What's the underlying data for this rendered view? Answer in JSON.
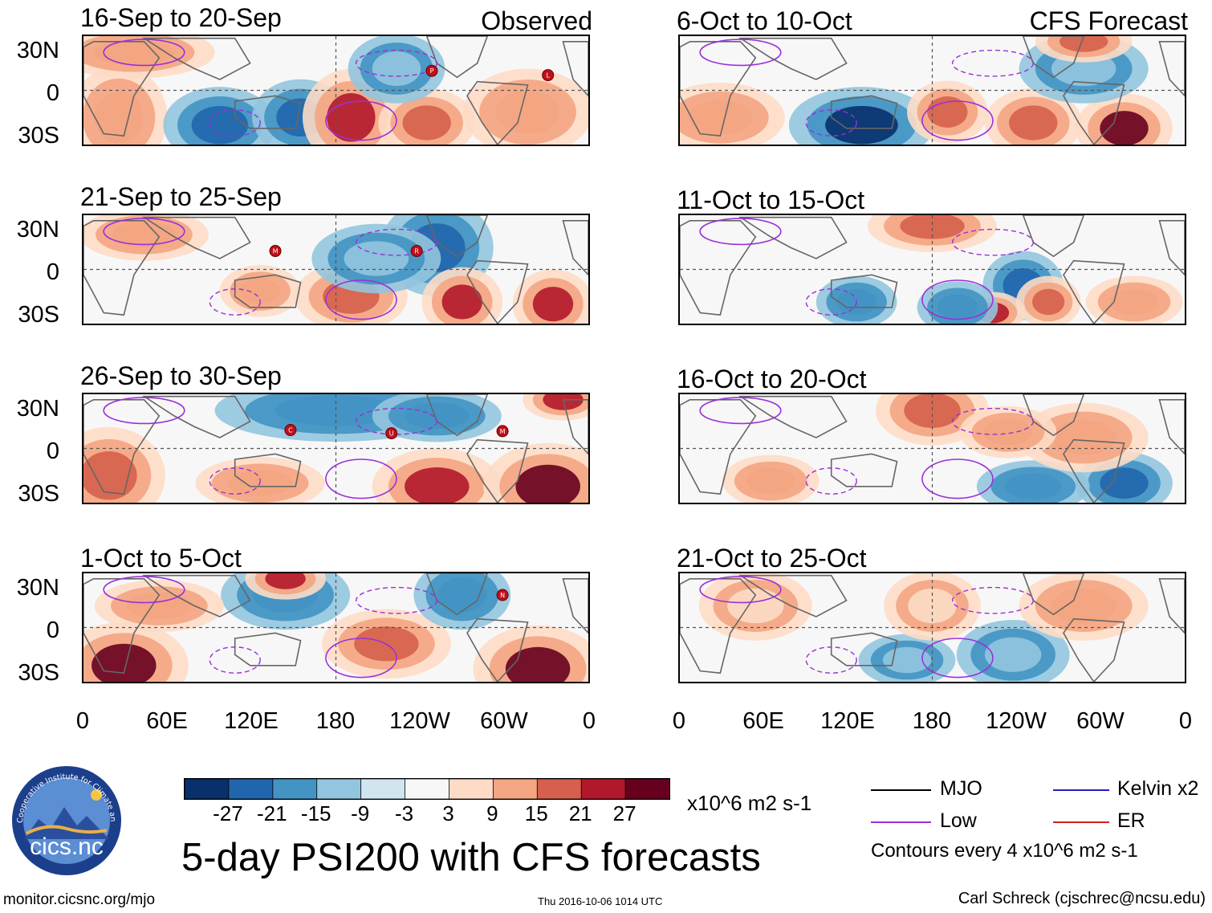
{
  "left_column_label": "Observed",
  "right_column_label": "CFS Forecast",
  "panels_left": [
    {
      "period": "16-Sep to 20-Sep",
      "storms": [
        "P",
        "L"
      ]
    },
    {
      "period": "21-Sep to 25-Sep",
      "storms": [
        "M",
        "R"
      ]
    },
    {
      "period": "26-Sep to 30-Sep",
      "storms": [
        "C",
        "U",
        "M"
      ]
    },
    {
      "period": "1-Oct to 5-Oct",
      "storms": [
        "N"
      ]
    }
  ],
  "panels_right": [
    {
      "period": "6-Oct to 10-Oct"
    },
    {
      "period": "11-Oct to 15-Oct"
    },
    {
      "period": "16-Oct to 20-Oct"
    },
    {
      "period": "21-Oct to 25-Oct"
    }
  ],
  "lat_labels": [
    "30N",
    "0",
    "30S"
  ],
  "lon_labels": [
    "0",
    "60E",
    "120E",
    "180",
    "120W",
    "60W",
    "0"
  ],
  "colorbar": {
    "colors": [
      "#08306b",
      "#2166ac",
      "#4393c3",
      "#92c5de",
      "#d1e5f0",
      "#f7f7f7",
      "#fddbc7",
      "#f4a582",
      "#d6604d",
      "#b2182b",
      "#67001f"
    ],
    "ticks": [
      "-27",
      "-21",
      "-15",
      "-9",
      "-3",
      "3",
      "9",
      "15",
      "21",
      "27"
    ],
    "units": "x10^6 m2 s-1"
  },
  "legend": {
    "mjo": "MJO",
    "kelvin": "Kelvin x2",
    "low": "Low",
    "er": "ER",
    "mjo_color": "#000000",
    "kelvin_color": "#2020c0",
    "low_color": "#9b30d9",
    "er_color": "#d02020",
    "contours_note": "Contours every 4 x10^6 m2 s-1"
  },
  "title": "5-day PSI200 with CFS forecasts",
  "logo_text": "cics.nc",
  "logo_ring_text": "Cooperative Institute for Climate and Satellites",
  "website": "monitor.cicsnc.org/mjo",
  "timestamp": "Thu 2016-10-06 1014 UTC",
  "credit": "Carl Schreck (cjschrec@ncsu.edu)"
}
